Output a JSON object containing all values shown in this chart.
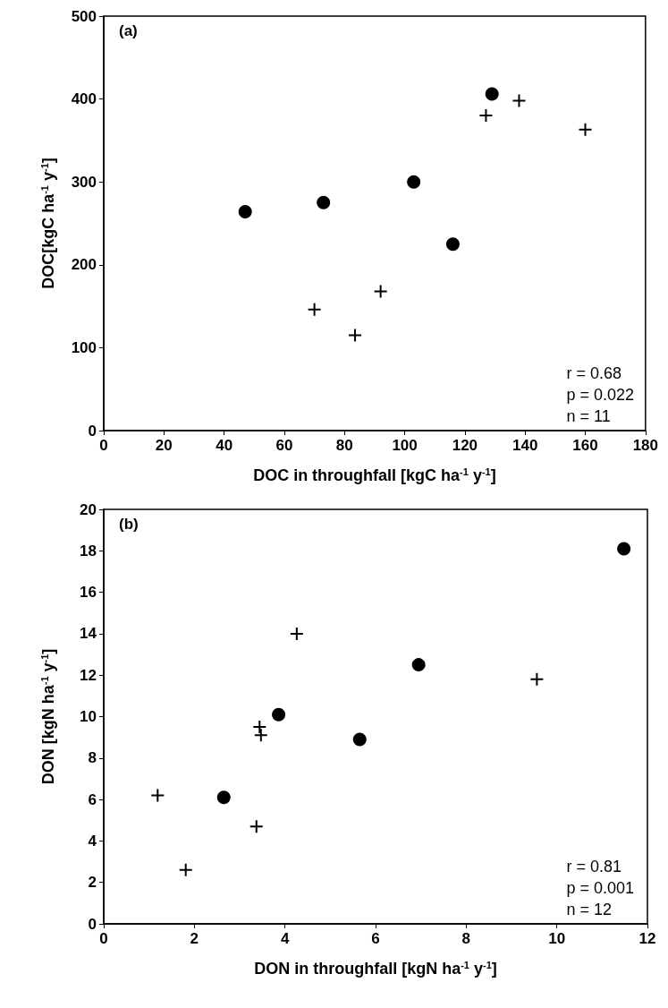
{
  "chart_data": [
    {
      "type": "scatter",
      "xlabel": "DOC in throughfall [kgC ha$^{-1}$ y$^{-1}$]",
      "ylabel": "DOC[kgC ha$^{-1}$ y$^{-1}$]",
      "annotations": [
        "(a)",
        "r = 0.68",
        "p = 0.022",
        "n = 11"
      ],
      "xlim": [
        0,
        180
      ],
      "xticks": [
        0,
        20,
        40,
        60,
        80,
        100,
        120,
        140,
        160,
        180
      ],
      "ylim": [
        0,
        500
      ],
      "yticks": [
        0,
        100,
        200,
        300,
        400,
        500
      ],
      "series": [
        {
          "color": "#000000",
          "marker": "circle",
          "x": [
            47,
            73,
            103,
            116,
            129
          ],
          "values": [
            264,
            275,
            300,
            225,
            406
          ]
        },
        {
          "color": "#000000",
          "marker": "cross",
          "x": [
            70,
            83.5,
            92,
            127,
            138,
            160
          ],
          "values": [
            146,
            115,
            168,
            380,
            398,
            363
          ]
        }
      ]
    },
    {
      "type": "scatter",
      "xlabel": "DON in throughfall [kgN ha$^{-1}$ y$^{-1}$]",
      "ylabel": "DON [kgN ha$^{-1}$ y$^{-1}$]",
      "annotations": [
        "(b)",
        "r = 0.81",
        "p = 0.001",
        "n = 12"
      ],
      "xlim": [
        0,
        12
      ],
      "xticks": [
        0,
        2,
        4,
        6,
        8,
        10,
        12
      ],
      "ylim": [
        0,
        20
      ],
      "yticks": [
        0,
        2,
        4,
        6,
        8,
        10,
        12,
        14,
        16,
        18,
        20
      ],
      "series": [
        {
          "color": "#000000",
          "marker": "circle",
          "x": [
            2.65,
            3.86,
            5.65,
            6.95,
            11.48
          ],
          "values": [
            6.1,
            10.1,
            8.9,
            12.5,
            18.1
          ]
        },
        {
          "color": "#000000",
          "marker": "cross",
          "x": [
            1.19,
            1.81,
            3.37,
            3.47,
            3.44,
            4.26,
            9.56
          ],
          "values": [
            6.2,
            2.6,
            4.7,
            9.1,
            9.5,
            14.0,
            11.8
          ]
        }
      ]
    }
  ]
}
